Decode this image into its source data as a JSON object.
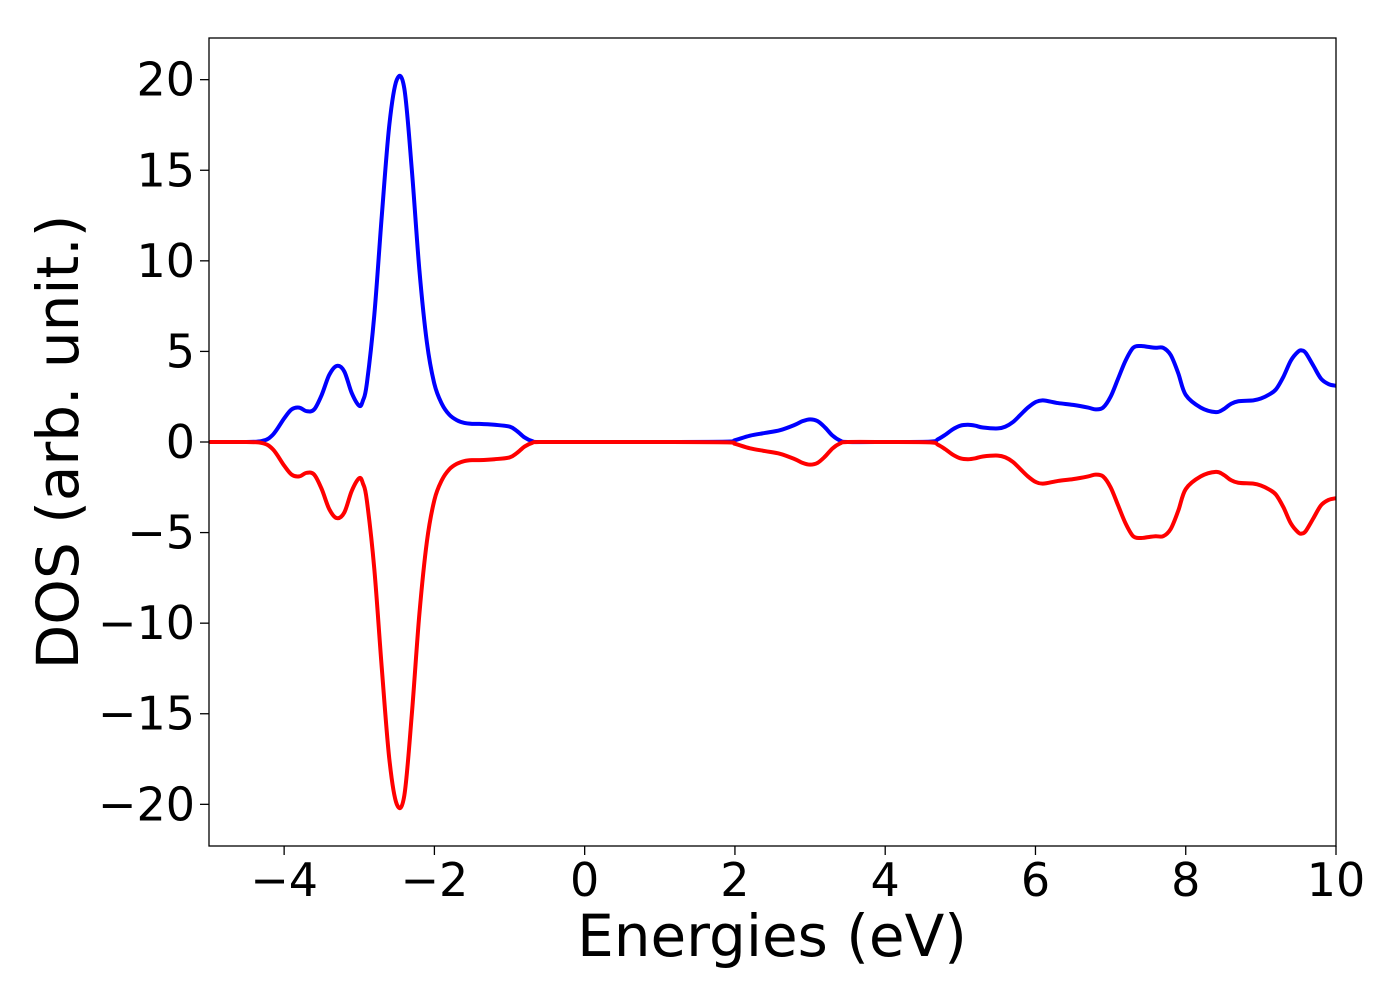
{
  "chart_data": {
    "type": "line",
    "title": "",
    "xlabel": "Energies (eV)",
    "ylabel": "DOS (arb. unit.)",
    "xlim": [
      -5,
      10
    ],
    "ylim": [
      -22.3,
      22.3
    ],
    "xticks": [
      -4,
      -2,
      0,
      2,
      4,
      6,
      8,
      10
    ],
    "xtick_labels": [
      "−4",
      "−2",
      "0",
      "2",
      "4",
      "6",
      "8",
      "10"
    ],
    "yticks": [
      20,
      15,
      10,
      5,
      0,
      -5,
      -10,
      -15,
      -20
    ],
    "ytick_labels": [
      "20",
      "15",
      "10",
      "5",
      "0",
      "−5",
      "−10",
      "−15",
      "−20"
    ],
    "grid": false,
    "legend": "none",
    "x": [
      -5.0,
      -4.6,
      -4.3,
      -4.15,
      -4.0,
      -3.9,
      -3.8,
      -3.7,
      -3.6,
      -3.5,
      -3.4,
      -3.3,
      -3.2,
      -3.1,
      -3.0,
      -2.95,
      -2.9,
      -2.8,
      -2.7,
      -2.6,
      -2.5,
      -2.4,
      -2.3,
      -2.2,
      -2.1,
      -2.0,
      -1.9,
      -1.8,
      -1.7,
      -1.6,
      -1.5,
      -1.4,
      -1.2,
      -1.0,
      -0.9,
      -0.8,
      -0.7,
      -0.6,
      0.0,
      1.0,
      1.9,
      2.0,
      2.2,
      2.4,
      2.6,
      2.8,
      2.9,
      3.0,
      3.1,
      3.2,
      3.3,
      3.4,
      3.5,
      4.0,
      4.6,
      4.7,
      4.8,
      4.9,
      5.0,
      5.1,
      5.2,
      5.3,
      5.5,
      5.6,
      5.7,
      5.8,
      5.9,
      6.0,
      6.1,
      6.3,
      6.5,
      6.7,
      6.8,
      6.9,
      7.0,
      7.1,
      7.2,
      7.3,
      7.4,
      7.5,
      7.6,
      7.7,
      7.8,
      7.9,
      8.0,
      8.2,
      8.4,
      8.5,
      8.6,
      8.7,
      8.9,
      9.0,
      9.1,
      9.2,
      9.3,
      9.4,
      9.5,
      9.55,
      9.6,
      9.7,
      9.8,
      9.9,
      10.0
    ],
    "series": [
      {
        "color": "#0000ff",
        "values": [
          0,
          0,
          0.05,
          0.4,
          1.3,
          1.8,
          1.9,
          1.7,
          1.8,
          2.6,
          3.7,
          4.2,
          3.9,
          2.7,
          2.0,
          2.3,
          3.2,
          7.0,
          12.5,
          17.5,
          20.0,
          19.5,
          15.0,
          9.5,
          5.5,
          3.2,
          2.1,
          1.5,
          1.2,
          1.05,
          1.0,
          1.0,
          0.95,
          0.85,
          0.6,
          0.25,
          0.05,
          0,
          0,
          0,
          0.02,
          0.1,
          0.35,
          0.5,
          0.65,
          0.95,
          1.15,
          1.25,
          1.15,
          0.8,
          0.35,
          0.08,
          0,
          0,
          0.02,
          0.15,
          0.4,
          0.7,
          0.9,
          0.95,
          0.9,
          0.8,
          0.75,
          0.85,
          1.1,
          1.5,
          1.9,
          2.2,
          2.3,
          2.15,
          2.05,
          1.9,
          1.8,
          1.9,
          2.5,
          3.5,
          4.5,
          5.2,
          5.3,
          5.25,
          5.2,
          5.2,
          4.8,
          3.8,
          2.6,
          1.9,
          1.65,
          1.8,
          2.1,
          2.25,
          2.3,
          2.4,
          2.6,
          2.9,
          3.6,
          4.5,
          5.0,
          5.05,
          4.9,
          4.2,
          3.5,
          3.2,
          3.1
        ]
      },
      {
        "color": "#ff0000",
        "values": [
          0,
          0,
          -0.05,
          -0.4,
          -1.3,
          -1.8,
          -1.9,
          -1.7,
          -1.8,
          -2.6,
          -3.7,
          -4.2,
          -3.9,
          -2.7,
          -2.0,
          -2.3,
          -3.2,
          -7.0,
          -12.5,
          -17.5,
          -20.0,
          -19.5,
          -15.0,
          -9.5,
          -5.5,
          -3.2,
          -2.1,
          -1.5,
          -1.2,
          -1.05,
          -1.0,
          -1.0,
          -0.95,
          -0.85,
          -0.6,
          -0.25,
          -0.05,
          0,
          0,
          0,
          -0.02,
          -0.1,
          -0.35,
          -0.5,
          -0.65,
          -0.95,
          -1.15,
          -1.25,
          -1.15,
          -0.8,
          -0.35,
          -0.08,
          0,
          0,
          -0.02,
          -0.15,
          -0.4,
          -0.7,
          -0.9,
          -0.95,
          -0.9,
          -0.8,
          -0.75,
          -0.85,
          -1.1,
          -1.5,
          -1.9,
          -2.2,
          -2.3,
          -2.15,
          -2.05,
          -1.9,
          -1.8,
          -1.9,
          -2.5,
          -3.5,
          -4.5,
          -5.2,
          -5.3,
          -5.25,
          -5.2,
          -5.2,
          -4.8,
          -3.8,
          -2.6,
          -1.9,
          -1.65,
          -1.8,
          -2.1,
          -2.25,
          -2.3,
          -2.4,
          -2.6,
          -2.9,
          -3.6,
          -4.5,
          -5.0,
          -5.05,
          -4.9,
          -4.2,
          -3.5,
          -3.2,
          -3.1
        ]
      }
    ]
  }
}
